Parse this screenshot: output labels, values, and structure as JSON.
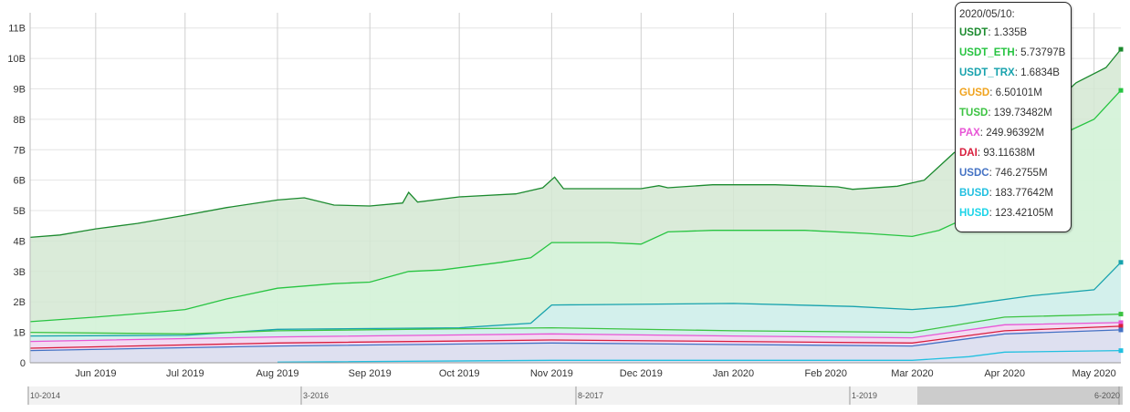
{
  "chart_data": {
    "type": "area",
    "ylim": [
      0,
      11500000000
    ],
    "y_ticks": [
      "0",
      "1B",
      "2B",
      "3B",
      "4B",
      "5B",
      "6B",
      "7B",
      "8B",
      "9B",
      "10B",
      "11B"
    ],
    "x_ticks": [
      "Jun 2019",
      "Jul 2019",
      "Aug 2019",
      "Sep 2019",
      "Oct 2019",
      "Nov 2019",
      "Dec 2019",
      "Jan 2020",
      "Feb 2020",
      "Mar 2020",
      "Apr 2020",
      "May 2020"
    ],
    "x_range": [
      "2019-05-10",
      "2020-05-10"
    ],
    "navigator_labels": [
      "10-2014",
      "3-2016",
      "8-2017",
      "1-2019",
      "6-2020"
    ],
    "series": [
      {
        "name": "USDT",
        "color": "#1b8a2e",
        "fill": "#d4e8d2",
        "points": [
          [
            "2019-05-10",
            4.12
          ],
          [
            "2019-05-20",
            4.2
          ],
          [
            "2019-06-01",
            4.4
          ],
          [
            "2019-06-15",
            4.58
          ],
          [
            "2019-07-01",
            4.85
          ],
          [
            "2019-07-15",
            5.1
          ],
          [
            "2019-08-01",
            5.35
          ],
          [
            "2019-08-10",
            5.42
          ],
          [
            "2019-08-20",
            5.18
          ],
          [
            "2019-09-01",
            5.15
          ],
          [
            "2019-09-12",
            5.25
          ],
          [
            "2019-09-14",
            5.6
          ],
          [
            "2019-09-17",
            5.28
          ],
          [
            "2019-10-01",
            5.45
          ],
          [
            "2019-10-20",
            5.55
          ],
          [
            "2019-10-29",
            5.75
          ],
          [
            "2019-11-02",
            6.1
          ],
          [
            "2019-11-05",
            5.72
          ],
          [
            "2019-11-20",
            5.72
          ],
          [
            "2019-12-01",
            5.72
          ],
          [
            "2019-12-07",
            5.82
          ],
          [
            "2019-12-10",
            5.75
          ],
          [
            "2019-12-25",
            5.85
          ],
          [
            "2020-01-15",
            5.85
          ],
          [
            "2020-02-05",
            5.78
          ],
          [
            "2020-02-10",
            5.7
          ],
          [
            "2020-02-25",
            5.8
          ],
          [
            "2020-03-05",
            6.0
          ],
          [
            "2020-03-15",
            6.9
          ],
          [
            "2020-03-31",
            7.7
          ],
          [
            "2020-04-15",
            8.3
          ],
          [
            "2020-04-25",
            9.2
          ],
          [
            "2020-05-05",
            9.7
          ],
          [
            "2020-05-10",
            10.3
          ]
        ]
      },
      {
        "name": "USDT_ETH",
        "color": "#27c441",
        "fill": "#d6f5da",
        "points": [
          [
            "2019-05-10",
            1.35
          ],
          [
            "2019-06-01",
            1.5
          ],
          [
            "2019-06-20",
            1.65
          ],
          [
            "2019-07-01",
            1.75
          ],
          [
            "2019-07-15",
            2.1
          ],
          [
            "2019-08-01",
            2.45
          ],
          [
            "2019-08-20",
            2.6
          ],
          [
            "2019-09-01",
            2.65
          ],
          [
            "2019-09-14",
            3.0
          ],
          [
            "2019-09-25",
            3.05
          ],
          [
            "2019-10-15",
            3.3
          ],
          [
            "2019-10-25",
            3.45
          ],
          [
            "2019-11-01",
            3.95
          ],
          [
            "2019-11-20",
            3.95
          ],
          [
            "2019-12-01",
            3.9
          ],
          [
            "2019-12-10",
            4.3
          ],
          [
            "2019-12-25",
            4.35
          ],
          [
            "2020-01-25",
            4.35
          ],
          [
            "2020-02-15",
            4.25
          ],
          [
            "2020-03-01",
            4.15
          ],
          [
            "2020-03-10",
            4.35
          ],
          [
            "2020-03-20",
            4.8
          ],
          [
            "2020-03-31",
            6.0
          ],
          [
            "2020-04-10",
            6.5
          ],
          [
            "2020-04-20",
            7.5
          ],
          [
            "2020-05-01",
            8.0
          ],
          [
            "2020-05-10",
            8.95
          ]
        ]
      },
      {
        "name": "USDT_TRX",
        "color": "#17a2ad",
        "fill": "#d2eeee",
        "points": [
          [
            "2019-05-10",
            0.88
          ],
          [
            "2019-07-01",
            0.9
          ],
          [
            "2019-08-01",
            1.1
          ],
          [
            "2019-10-01",
            1.15
          ],
          [
            "2019-10-25",
            1.3
          ],
          [
            "2019-11-01",
            1.9
          ],
          [
            "2020-01-01",
            1.95
          ],
          [
            "2020-02-10",
            1.85
          ],
          [
            "2020-03-01",
            1.75
          ],
          [
            "2020-03-15",
            1.85
          ],
          [
            "2020-04-10",
            2.2
          ],
          [
            "2020-05-01",
            2.4
          ],
          [
            "2020-05-10",
            3.3
          ]
        ]
      },
      {
        "name": "TUSD",
        "color": "#3cc342",
        "fill": "none",
        "points": [
          [
            "2019-05-10",
            1.0
          ],
          [
            "2019-07-01",
            0.95
          ],
          [
            "2019-08-01",
            1.05
          ],
          [
            "2019-11-01",
            1.15
          ],
          [
            "2020-01-01",
            1.05
          ],
          [
            "2020-03-01",
            1.0
          ],
          [
            "2020-04-01",
            1.5
          ],
          [
            "2020-05-10",
            1.6
          ]
        ]
      },
      {
        "name": "PAX",
        "color": "#e855d6",
        "fill": "#f8d6f3",
        "points": [
          [
            "2019-05-10",
            0.7
          ],
          [
            "2019-08-01",
            0.85
          ],
          [
            "2019-11-01",
            0.95
          ],
          [
            "2020-01-01",
            0.88
          ],
          [
            "2020-03-01",
            0.82
          ],
          [
            "2020-04-01",
            1.25
          ],
          [
            "2020-05-10",
            1.32
          ]
        ]
      },
      {
        "name": "DAI",
        "color": "#d81e3d",
        "fill": "none",
        "points": [
          [
            "2019-05-10",
            0.48
          ],
          [
            "2019-08-01",
            0.65
          ],
          [
            "2019-11-01",
            0.75
          ],
          [
            "2020-01-01",
            0.7
          ],
          [
            "2020-03-01",
            0.65
          ],
          [
            "2020-04-01",
            1.05
          ],
          [
            "2020-05-10",
            1.2
          ]
        ]
      },
      {
        "name": "USDC",
        "color": "#4472c4",
        "fill": "#d9e1f0",
        "points": [
          [
            "2019-05-10",
            0.4
          ],
          [
            "2019-08-01",
            0.55
          ],
          [
            "2019-11-01",
            0.65
          ],
          [
            "2020-01-01",
            0.6
          ],
          [
            "2020-03-01",
            0.55
          ],
          [
            "2020-04-01",
            0.95
          ],
          [
            "2020-05-10",
            1.08
          ]
        ]
      },
      {
        "name": "BUSD",
        "color": "#22c0e0",
        "fill": "none",
        "points": [
          [
            "2019-08-01",
            0.02
          ],
          [
            "2019-11-01",
            0.08
          ],
          [
            "2020-03-01",
            0.08
          ],
          [
            "2020-03-20",
            0.2
          ],
          [
            "2020-04-01",
            0.35
          ],
          [
            "2020-05-10",
            0.4
          ]
        ]
      }
    ]
  },
  "tooltip": {
    "date": "2020/05/10:",
    "rows": [
      {
        "name": "USDT",
        "value": "1.335B",
        "color": "#1b8a2e"
      },
      {
        "name": "USDT_ETH",
        "value": "5.73797B",
        "color": "#27c441"
      },
      {
        "name": "USDT_TRX",
        "value": "1.6834B",
        "color": "#17a2ad"
      },
      {
        "name": "GUSD",
        "value": "6.50101M",
        "color": "#f0a31e"
      },
      {
        "name": "TUSD",
        "value": "139.73482M",
        "color": "#3cc342"
      },
      {
        "name": "PAX",
        "value": "249.96392M",
        "color": "#e855d6"
      },
      {
        "name": "DAI",
        "value": "93.11638M",
        "color": "#d81e3d"
      },
      {
        "name": "USDC",
        "value": "746.2755M",
        "color": "#4472c4"
      },
      {
        "name": "BUSD",
        "value": "183.77642M",
        "color": "#22c0e0"
      },
      {
        "name": "HUSD",
        "value": "123.42105M",
        "color": "#1cd4e8"
      }
    ]
  }
}
